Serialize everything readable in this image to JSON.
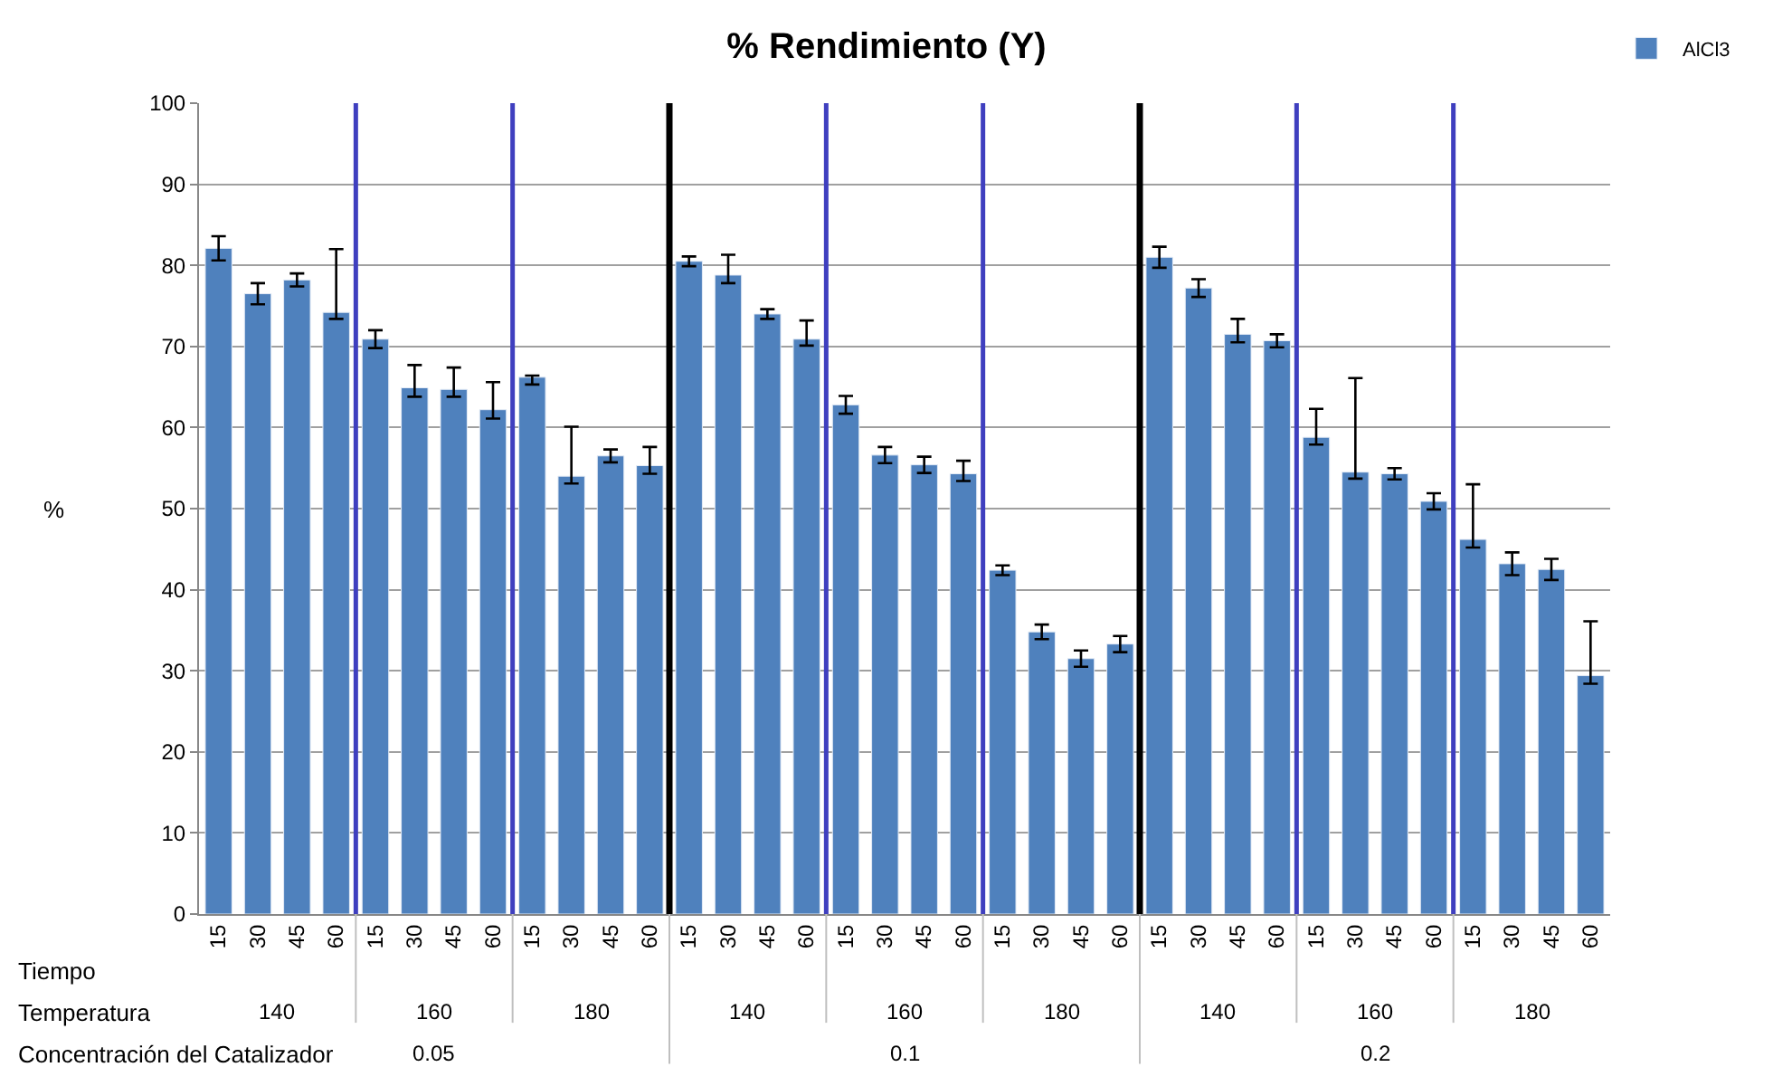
{
  "chart_data": {
    "type": "bar",
    "title": "% Rendimiento (Y)",
    "ylabel": "%",
    "categories": [
      "15",
      "30",
      "45",
      "60",
      "15",
      "30",
      "45",
      "60",
      "15",
      "30",
      "45",
      "60",
      "15",
      "30",
      "45",
      "60",
      "15",
      "30",
      "45",
      "60",
      "15",
      "30",
      "45",
      "60",
      "15",
      "30",
      "45",
      "60",
      "15",
      "30",
      "45",
      "60",
      "15",
      "30",
      "45",
      "60"
    ],
    "series": [
      {
        "name": "AlCl3",
        "color": "#4f81bd",
        "values": [
          82.1,
          76.5,
          78.2,
          74.2,
          70.9,
          64.9,
          64.7,
          62.2,
          66.2,
          54.0,
          56.5,
          55.3,
          80.5,
          78.8,
          74.0,
          70.9,
          62.8,
          56.6,
          55.4,
          54.3,
          42.4,
          34.8,
          31.5,
          33.3,
          81.0,
          77.2,
          71.5,
          70.7,
          58.8,
          54.5,
          54.3,
          50.9,
          46.2,
          43.2,
          42.5,
          29.4
        ],
        "errors": [
          1.5,
          1.3,
          0.8,
          [
            73.4,
            82.0
          ],
          1.1,
          [
            63.8,
            67.7
          ],
          [
            63.8,
            67.4
          ],
          [
            61.1,
            65.6
          ],
          [
            65.3,
            66.4
          ],
          [
            53.1,
            60.1
          ],
          0.8,
          [
            54.3,
            57.6
          ],
          0.6,
          [
            77.8,
            81.3
          ],
          0.6,
          [
            70.1,
            73.2
          ],
          1.1,
          1.0,
          1.0,
          [
            53.4,
            55.9
          ],
          0.6,
          0.9,
          1.0,
          1.0,
          1.3,
          1.1,
          [
            70.5,
            73.4
          ],
          0.8,
          [
            57.9,
            62.3
          ],
          [
            53.7,
            66.1
          ],
          0.7,
          1.0,
          [
            45.2,
            53.0
          ],
          1.4,
          1.3,
          [
            28.4,
            36.1
          ]
        ]
      }
    ],
    "ylim": [
      0,
      100
    ],
    "yticks": [
      0,
      10,
      20,
      30,
      40,
      50,
      60,
      70,
      80,
      90,
      100
    ],
    "grid": "y",
    "legend": "top right",
    "annotations": [
      "Tiempo",
      "Temperatura",
      "Concentración del Catalizador",
      "140",
      "160",
      "180",
      "140",
      "160",
      "180",
      "140",
      "160",
      "180",
      "0.05",
      "0.1",
      "0.2"
    ]
  }
}
